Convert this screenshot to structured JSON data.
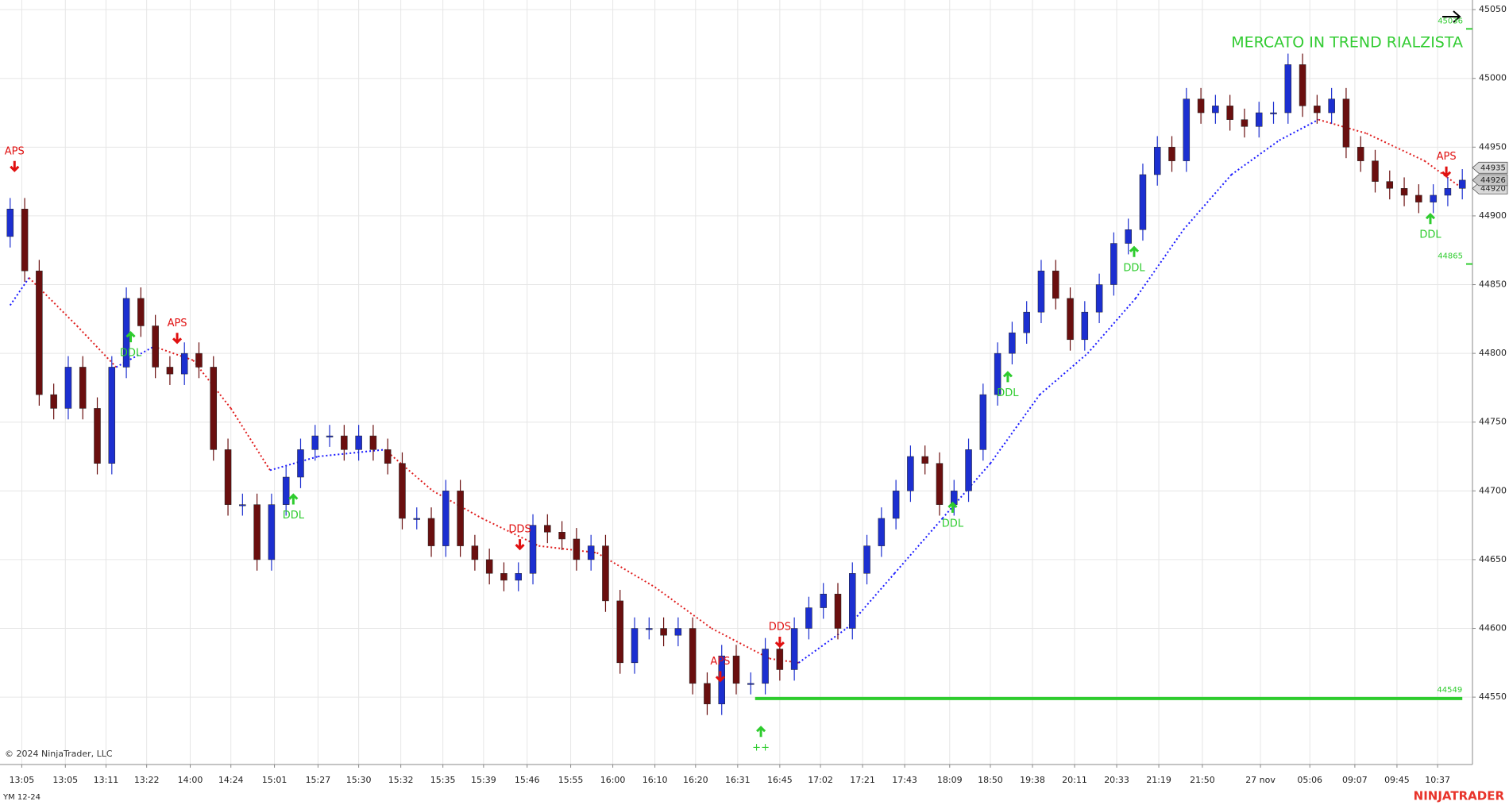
{
  "chart_data": {
    "type": "candlestick",
    "title": "MERCATO IN TREND RIALZISTA",
    "title_color": "#33cc33",
    "symbol": "YM 12-24",
    "copyright": "© 2024 NinjaTrader, LLC",
    "brand": "NINJATRADER",
    "brand_color": "#e8332a",
    "grid": true,
    "xlim": [
      -0.7,
      100.7
    ],
    "ylim": [
      44501,
      45057
    ],
    "yticks": [
      44550,
      44600,
      44650,
      44700,
      44750,
      44800,
      44850,
      44900,
      44950,
      45000,
      45050
    ],
    "xticks": [
      {
        "value": 0.8,
        "label": "13:05"
      },
      {
        "value": 3.8,
        "label": "13:05"
      },
      {
        "value": 6.6,
        "label": "13:11"
      },
      {
        "value": 9.4,
        "label": "13:22"
      },
      {
        "value": 12.4,
        "label": "14:00"
      },
      {
        "value": 15.2,
        "label": "14:24"
      },
      {
        "value": 18.2,
        "label": "15:01"
      },
      {
        "value": 21.2,
        "label": "15:27"
      },
      {
        "value": 24.0,
        "label": "15:30"
      },
      {
        "value": 26.9,
        "label": "15:32"
      },
      {
        "value": 29.8,
        "label": "15:35"
      },
      {
        "value": 32.6,
        "label": "15:39"
      },
      {
        "value": 35.6,
        "label": "15:46"
      },
      {
        "value": 38.6,
        "label": "15:55"
      },
      {
        "value": 41.5,
        "label": "16:00"
      },
      {
        "value": 44.4,
        "label": "16:10"
      },
      {
        "value": 47.2,
        "label": "16:20"
      },
      {
        "value": 50.1,
        "label": "16:31"
      },
      {
        "value": 53.0,
        "label": "16:45"
      },
      {
        "value": 55.8,
        "label": "17:02"
      },
      {
        "value": 58.7,
        "label": "17:21"
      },
      {
        "value": 61.6,
        "label": "17:43"
      },
      {
        "value": 64.7,
        "label": "18:09"
      },
      {
        "value": 67.5,
        "label": "18:50"
      },
      {
        "value": 70.4,
        "label": "19:38"
      },
      {
        "value": 73.3,
        "label": "20:11"
      },
      {
        "value": 76.2,
        "label": "20:33"
      },
      {
        "value": 79.1,
        "label": "21:19"
      },
      {
        "value": 82.1,
        "label": "21:50"
      },
      {
        "value": 86.1,
        "label": "27 nov"
      },
      {
        "value": 89.5,
        "label": "05:06"
      },
      {
        "value": 92.6,
        "label": "09:07"
      },
      {
        "value": 95.5,
        "label": "09:45"
      },
      {
        "value": 98.3,
        "label": "10:37"
      }
    ],
    "up_color": "#1c2fd0",
    "down_color": "#6a0f0f",
    "open": [
      44885,
      44905,
      44860,
      44770,
      44760,
      44790,
      44760,
      44720,
      44790,
      44840,
      44820,
      44790,
      44785,
      44800,
      44790,
      44730,
      44690,
      44690,
      44650,
      44690,
      44710,
      44730,
      44740,
      44740,
      44730,
      44740,
      44730,
      44720,
      44680,
      44680,
      44660,
      44700,
      44660,
      44650,
      44640,
      44635,
      44640,
      44675,
      44670,
      44665,
      44650,
      44660,
      44620,
      44575,
      44600,
      44600,
      44595,
      44600,
      44560,
      44545,
      44580,
      44560,
      44560,
      44585,
      44570,
      44600,
      44615,
      44625,
      44600,
      44640,
      44660,
      44680,
      44700,
      44725,
      44720,
      44690,
      44700,
      44730,
      44770,
      44800,
      44815,
      44830,
      44860,
      44840,
      44810,
      44830,
      44850,
      44880,
      44890,
      44930,
      44950,
      44940,
      44985,
      44975,
      44980,
      44970,
      44965,
      44975,
      44975,
      45010,
      44980,
      44975,
      44985,
      44950,
      44940,
      44925,
      44920,
      44915,
      44910,
      44915,
      44920
    ],
    "high": [
      44913,
      44913,
      44868,
      44778,
      44798,
      44798,
      44768,
      44798,
      44848,
      44848,
      44828,
      44798,
      44808,
      44808,
      44798,
      44738,
      44698,
      44698,
      44698,
      44718,
      44738,
      44748,
      44748,
      44748,
      44748,
      44748,
      44738,
      44728,
      44688,
      44688,
      44708,
      44708,
      44668,
      44658,
      44648,
      44648,
      44683,
      44683,
      44678,
      44673,
      44668,
      44668,
      44628,
      44608,
      44608,
      44608,
      44608,
      44608,
      44568,
      44588,
      44588,
      44568,
      44593,
      44593,
      44608,
      44623,
      44633,
      44633,
      44648,
      44668,
      44688,
      44708,
      44733,
      44733,
      44728,
      44708,
      44738,
      44778,
      44808,
      44823,
      44838,
      44868,
      44868,
      44848,
      44838,
      44858,
      44888,
      44898,
      44938,
      44958,
      44958,
      44993,
      44993,
      44988,
      44988,
      44978,
      44983,
      44983,
      45018,
      45018,
      44988,
      44993,
      44993,
      44958,
      44948,
      44933,
      44928,
      44923,
      44923,
      44928,
      44934
    ],
    "low": [
      44877,
      44852,
      44762,
      44752,
      44752,
      44752,
      44712,
      44712,
      44782,
      44812,
      44782,
      44777,
      44777,
      44782,
      44722,
      44682,
      44682,
      44642,
      44642,
      44682,
      44702,
      44722,
      44732,
      44722,
      44722,
      44722,
      44712,
      44672,
      44672,
      44652,
      44652,
      44652,
      44642,
      44632,
      44627,
      44627,
      44632,
      44662,
      44657,
      44642,
      44642,
      44612,
      44567,
      44567,
      44592,
      44587,
      44587,
      44552,
      44537,
      44537,
      44552,
      44552,
      44552,
      44562,
      44562,
      44592,
      44607,
      44592,
      44592,
      44632,
      44652,
      44672,
      44692,
      44712,
      44682,
      44682,
      44692,
      44722,
      44762,
      44792,
      44807,
      44822,
      44832,
      44802,
      44802,
      44822,
      44842,
      44872,
      44882,
      44922,
      44932,
      44932,
      44967,
      44967,
      44962,
      44957,
      44957,
      44967,
      44967,
      44972,
      44967,
      44967,
      44942,
      44932,
      44917,
      44912,
      44907,
      44902,
      44902,
      44907,
      44912
    ],
    "close": [
      44905,
      44860,
      44770,
      44760,
      44790,
      44760,
      44720,
      44790,
      44840,
      44820,
      44790,
      44785,
      44800,
      44790,
      44730,
      44690,
      44690,
      44650,
      44690,
      44710,
      44730,
      44740,
      44740,
      44730,
      44740,
      44730,
      44720,
      44680,
      44680,
      44660,
      44700,
      44660,
      44650,
      44640,
      44635,
      44640,
      44675,
      44670,
      44665,
      44650,
      44660,
      44620,
      44575,
      44600,
      44600,
      44595,
      44600,
      44560,
      44545,
      44580,
      44560,
      44560,
      44585,
      44570,
      44600,
      44615,
      44625,
      44600,
      44640,
      44660,
      44680,
      44700,
      44725,
      44720,
      44690,
      44700,
      44730,
      44770,
      44800,
      44815,
      44830,
      44860,
      44840,
      44810,
      44830,
      44850,
      44880,
      44890,
      44930,
      44950,
      44940,
      44985,
      44975,
      44980,
      44970,
      44965,
      44975,
      44975,
      45010,
      44980,
      44975,
      44985,
      44950,
      44940,
      44925,
      44920,
      44915,
      44910,
      44915,
      44920,
      44926
    ],
    "ma": {
      "up_color": "#1a1aff",
      "down_color": "#e02020",
      "x": [
        0,
        1.3,
        4.6,
        7.3,
        9.9,
        12.6,
        15.2,
        17.9,
        21.2,
        25.8,
        29.1,
        32.5,
        36.4,
        40.4,
        44.4,
        48.3,
        52.3,
        54.3,
        57.6,
        60.9,
        64.2,
        67.5,
        70.9,
        74.2,
        77.5,
        80.8,
        84.1,
        87.4,
        90.1,
        93.4,
        97.4,
        100
      ],
      "values": [
        44835,
        44855,
        44820,
        44790,
        44805,
        44795,
        44760,
        44715,
        44725,
        44730,
        44700,
        44680,
        44660,
        44655,
        44630,
        44600,
        44578,
        44575,
        44600,
        44640,
        44680,
        44720,
        44770,
        44800,
        44840,
        44890,
        44930,
        44955,
        44970,
        44960,
        44940,
        44920
      ]
    },
    "signals": [
      {
        "label": "APS",
        "x": 0.3,
        "y": 44933,
        "direction": "down",
        "color": "#e01010"
      },
      {
        "label": "DDL",
        "x": 8.3,
        "y": 44815,
        "direction": "up",
        "color": "#2ecc2e"
      },
      {
        "label": "APS",
        "x": 11.5,
        "y": 44808,
        "direction": "down",
        "color": "#e01010"
      },
      {
        "label": "DDL",
        "x": 19.5,
        "y": 44697,
        "direction": "up",
        "color": "#2ecc2e"
      },
      {
        "label": "DDS",
        "x": 35.1,
        "y": 44658,
        "direction": "down",
        "color": "#e01010"
      },
      {
        "label": "APS",
        "x": 48.9,
        "y": 44562,
        "direction": "down",
        "color": "#e01010"
      },
      {
        "label": "++",
        "x": 51.7,
        "y": 44528,
        "direction": "up",
        "color": "#2ecc2e"
      },
      {
        "label": "DDS",
        "x": 53.0,
        "y": 44587,
        "direction": "down",
        "color": "#e01010"
      },
      {
        "label": "DDL",
        "x": 64.9,
        "y": 44691,
        "direction": "up",
        "color": "#2ecc2e"
      },
      {
        "label": "DDL",
        "x": 68.7,
        "y": 44786,
        "direction": "up",
        "color": "#2ecc2e"
      },
      {
        "label": "DDL",
        "x": 77.4,
        "y": 44877,
        "direction": "up",
        "color": "#2ecc2e"
      },
      {
        "label": "DDL",
        "x": 97.8,
        "y": 44901,
        "direction": "up",
        "color": "#2ecc2e"
      },
      {
        "label": "APS",
        "x": 98.9,
        "y": 44929,
        "direction": "down",
        "color": "#e01010"
      }
    ],
    "support": {
      "value": 44549,
      "from": 51.3,
      "to": 100,
      "color": "#2ecc2e"
    },
    "price_labels": [
      {
        "value": 45036,
        "style": "marker",
        "color": "#2ecc2e"
      },
      {
        "value": 44865,
        "style": "marker",
        "color": "#2ecc2e"
      },
      {
        "value": 44935,
        "style": "box",
        "color": "#d9d9d9"
      },
      {
        "value": 44920,
        "style": "box",
        "color": "#d9d9d9"
      },
      {
        "value": 44926,
        "style": "box",
        "color": "#c4c4c4"
      }
    ]
  }
}
